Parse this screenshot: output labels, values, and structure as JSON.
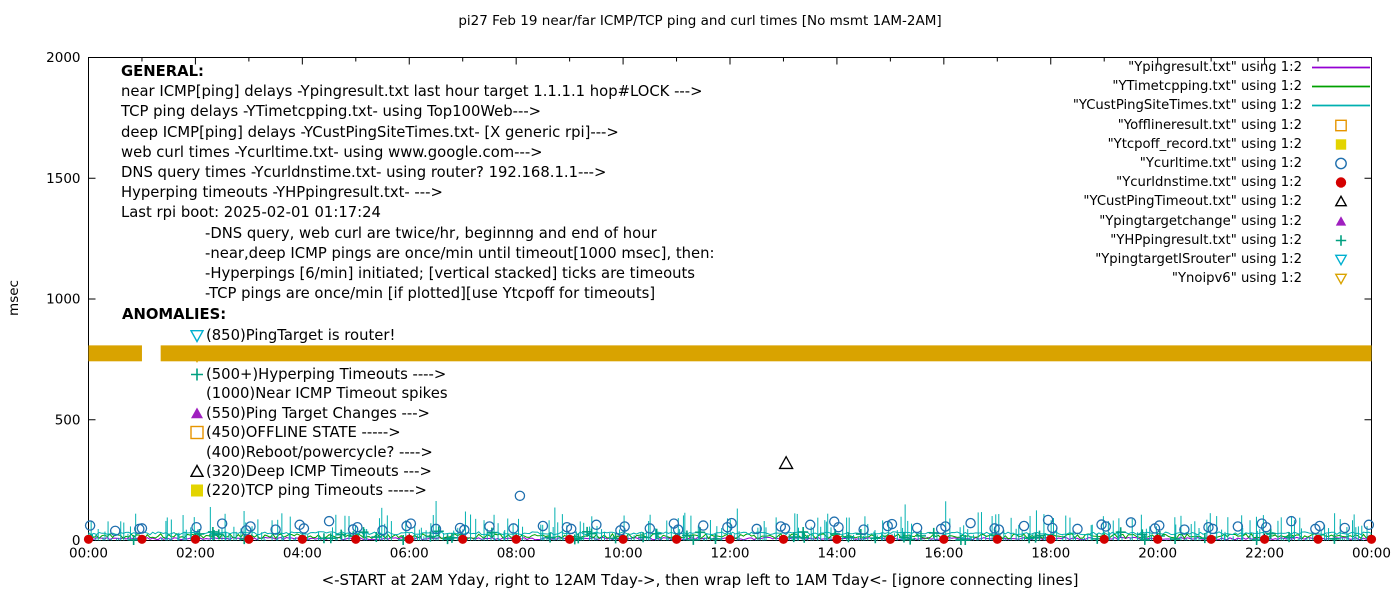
{
  "title": "pi27 Feb 19  near/far ICMP/TCP ping and curl times [No msmt 1AM-2AM]",
  "ylabel": "msec",
  "xlabel": "<-START at 2AM Yday, right to 12AM Tday->, then wrap left to 1AM Tday<- [ignore connecting lines]",
  "general": {
    "heading": "GENERAL:",
    "lines": [
      "near ICMP[ping] delays -Ypingresult.txt last hour target 1.1.1.1 hop#LOCK --->",
      "TCP ping delays -YTimetcpping.txt- using Top100Web--->",
      "deep ICMP[ping] delays -YCustPingSiteTimes.txt- [X generic rpi]--->",
      "web curl times -Ycurltime.txt- using www.google.com--->",
      "DNS query times -Ycurldnstime.txt- using router? 192.168.1.1--->",
      "Hyperping timeouts -YHPpingresult.txt- --->",
      "Last rpi boot: 2025-02-01 01:17:24"
    ],
    "notes": [
      "-DNS query, web curl are twice/hr, beginnng and end of hour",
      "-near,deep ICMP pings are once/min until timeout[1000 msec], then:",
      "-Hyperpings [6/min] initiated; [vertical stacked] ticks are timeouts",
      "-TCP pings are once/min [if plotted][use Ytcpoff for timeouts]"
    ]
  },
  "anomalies": {
    "heading": "ANOMALIES:",
    "items": [
      {
        "marker": "triangle-down-open",
        "color": "#00b0d0",
        "text": "(850)PingTarget is router!"
      },
      {
        "marker": "triangle-down-open",
        "color": "#d9a300",
        "text": ""
      },
      {
        "marker": "plus",
        "color": "#00a080",
        "text": "(500+)Hyperping Timeouts ---->"
      },
      {
        "marker": "none",
        "color": "#000000",
        "text": "(1000)Near ICMP Timeout spikes"
      },
      {
        "marker": "triangle-up-filled",
        "color": "#9f1fbf",
        "text": "(550)Ping Target Changes --->"
      },
      {
        "marker": "square-open",
        "color": "#e69500",
        "text": "(450)OFFLINE STATE ----->"
      },
      {
        "marker": "none",
        "color": "#000000",
        "text": "(400)Reboot/powercycle? ---->"
      },
      {
        "marker": "triangle-up-open",
        "color": "#000000",
        "text": "(320)Deep ICMP Timeouts --->"
      },
      {
        "marker": "square-filled",
        "color": "#e3d400",
        "text": "(220)TCP ping Timeouts ----->"
      }
    ]
  },
  "legend": {
    "items": [
      {
        "label": "\"Ypingresult.txt\" using 1:2",
        "sample": "line",
        "color": "#9400d3"
      },
      {
        "label": "\"YTimetcpping.txt\" using 1:2",
        "sample": "line",
        "color": "#00a000"
      },
      {
        "label": "\"YCustPingSiteTimes.txt\" using 1:2",
        "sample": "line",
        "color": "#00b0b0"
      },
      {
        "label": "\"Yofflineresult.txt\" using 1:2",
        "sample": "square-open",
        "color": "#e69500"
      },
      {
        "label": "\"Ytcpoff_record.txt\" using 1:2",
        "sample": "square-filled",
        "color": "#e3d400"
      },
      {
        "label": "\"Ycurltime.txt\" using 1:2",
        "sample": "circle-open",
        "color": "#1f6fae"
      },
      {
        "label": "\"Ycurldnstime.txt\" using 1:2",
        "sample": "circle-filled",
        "color": "#d40000"
      },
      {
        "label": "\"YCustPingTimeout.txt\" using 1:2",
        "sample": "triangle-up-open",
        "color": "#000000"
      },
      {
        "label": "\"Ypingtargetchange\" using 1:2",
        "sample": "triangle-up-filled",
        "color": "#9f1fbf"
      },
      {
        "label": "\"YHPpingresult.txt\" using 1:2",
        "sample": "plus",
        "color": "#00a080"
      },
      {
        "label": "\"YpingtargetISrouter\" using 1:2",
        "sample": "triangle-down-open",
        "color": "#00b0d0"
      },
      {
        "label": "\"Ynoipv6\" using 1:2",
        "sample": "triangle-down-open",
        "color": "#d9a300"
      }
    ]
  },
  "chart_data": {
    "type": "scatter",
    "title": "pi27 Feb 19  near/far ICMP/TCP ping and curl times [No msmt 1AM-2AM]",
    "xlabel": "<-START at 2AM Yday, right to 12AM Tday->, then wrap left to 1AM Tday<- [ignore connecting lines]",
    "ylabel": "msec",
    "xlim_hours": [
      0,
      24
    ],
    "ylim": [
      0,
      2000
    ],
    "grid": false,
    "legend_position": "top-right",
    "x_tick_hours": [
      0,
      2,
      4,
      6,
      8,
      10,
      12,
      14,
      16,
      18,
      20,
      22,
      24
    ],
    "x_tick_labels": [
      "00:00",
      "02:00",
      "04:00",
      "06:00",
      "08:00",
      "10:00",
      "12:00",
      "14:00",
      "16:00",
      "18:00",
      "20:00",
      "22:00",
      "00:00"
    ],
    "y_ticks": [
      0,
      500,
      1000,
      1500,
      2000
    ],
    "no_measurement_gap_hours": [
      1.0,
      1.35
    ],
    "series": [
      {
        "name": "Ypingresult",
        "type": "noise-line",
        "color": "#9400d3",
        "base": 8,
        "amp": 5,
        "seed": 9
      },
      {
        "name": "YTimetcpping",
        "type": "noise-line",
        "color": "#00a000",
        "base": 18,
        "amp": 10,
        "seed": 5
      },
      {
        "name": "YCustPingSiteTimes-base",
        "type": "noise-line",
        "color": "#00b0b0",
        "base": 30,
        "amp": 6,
        "seed": 3
      },
      {
        "name": "YCustPingSiteTimes",
        "type": "spikes",
        "color": "#00b0b0",
        "count": 520,
        "y_max": 115,
        "outlier_max": 170,
        "seed": 11
      },
      {
        "name": "YHPpingresult",
        "type": "scatter-random",
        "marker": "plus",
        "color": "#00a080",
        "count": 60,
        "y_min": 2,
        "y_max": 40,
        "seed": 21
      },
      {
        "name": "Ynoipv6",
        "type": "band",
        "color": "#d9a300",
        "y": 775,
        "half_thickness_msec": 33
      },
      {
        "name": "Ycurltime",
        "type": "points",
        "marker": "circle-open",
        "color": "#1f6fae",
        "points": [
          [
            0.03,
            62
          ],
          [
            0.5,
            40
          ],
          [
            0.95,
            48
          ],
          [
            1.0,
            50
          ],
          [
            2.02,
            55
          ],
          [
            2.5,
            70
          ],
          [
            2.95,
            42
          ],
          [
            3.03,
            58
          ],
          [
            3.5,
            45
          ],
          [
            3.95,
            65
          ],
          [
            4.03,
            50
          ],
          [
            4.5,
            80
          ],
          [
            4.95,
            46
          ],
          [
            5.03,
            55
          ],
          [
            5.5,
            42
          ],
          [
            5.95,
            60
          ],
          [
            6.03,
            70
          ],
          [
            6.5,
            48
          ],
          [
            6.95,
            52
          ],
          [
            7.03,
            44
          ],
          [
            7.5,
            58
          ],
          [
            7.95,
            50
          ],
          [
            8.07,
            185
          ],
          [
            8.5,
            60
          ],
          [
            8.95,
            55
          ],
          [
            9.03,
            48
          ],
          [
            9.5,
            65
          ],
          [
            9.95,
            42
          ],
          [
            10.03,
            58
          ],
          [
            10.5,
            50
          ],
          [
            10.95,
            70
          ],
          [
            11.03,
            45
          ],
          [
            11.5,
            62
          ],
          [
            11.95,
            55
          ],
          [
            12.03,
            72
          ],
          [
            12.5,
            48
          ],
          [
            12.95,
            58
          ],
          [
            13.03,
            50
          ],
          [
            13.5,
            65
          ],
          [
            13.95,
            78
          ],
          [
            14.03,
            55
          ],
          [
            14.5,
            45
          ],
          [
            14.95,
            60
          ],
          [
            15.03,
            68
          ],
          [
            15.5,
            52
          ],
          [
            15.95,
            48
          ],
          [
            16.03,
            58
          ],
          [
            16.5,
            72
          ],
          [
            16.95,
            50
          ],
          [
            17.03,
            45
          ],
          [
            17.5,
            60
          ],
          [
            17.95,
            85
          ],
          [
            18.03,
            52
          ],
          [
            18.5,
            48
          ],
          [
            18.95,
            66
          ],
          [
            19.03,
            58
          ],
          [
            19.5,
            75
          ],
          [
            19.95,
            50
          ],
          [
            20.03,
            62
          ],
          [
            20.5,
            45
          ],
          [
            20.95,
            55
          ],
          [
            21.03,
            48
          ],
          [
            21.5,
            58
          ],
          [
            21.95,
            70
          ],
          [
            22.03,
            55
          ],
          [
            22.5,
            80
          ],
          [
            22.95,
            48
          ],
          [
            23.03,
            60
          ],
          [
            23.5,
            52
          ],
          [
            23.95,
            65
          ]
        ]
      },
      {
        "name": "Ycurldnstime",
        "type": "points",
        "marker": "circle-filled",
        "color": "#d40000",
        "points": [
          [
            0,
            5
          ],
          [
            1,
            5
          ],
          [
            2,
            5
          ],
          [
            3,
            5
          ],
          [
            4,
            5
          ],
          [
            5,
            5
          ],
          [
            6,
            5
          ],
          [
            7,
            5
          ],
          [
            8,
            5
          ],
          [
            9,
            5
          ],
          [
            10,
            5
          ],
          [
            11,
            5
          ],
          [
            12,
            5
          ],
          [
            13,
            5
          ],
          [
            14,
            5
          ],
          [
            15,
            5
          ],
          [
            16,
            5
          ],
          [
            17,
            5
          ],
          [
            18,
            5
          ],
          [
            19,
            5
          ],
          [
            20,
            5
          ],
          [
            21,
            5
          ],
          [
            22,
            5
          ],
          [
            23,
            5
          ],
          [
            24,
            5
          ]
        ]
      },
      {
        "name": "YCustPingTimeout",
        "type": "points",
        "marker": "triangle-up-open",
        "color": "#000000",
        "points": [
          [
            13.05,
            320
          ]
        ]
      }
    ]
  }
}
